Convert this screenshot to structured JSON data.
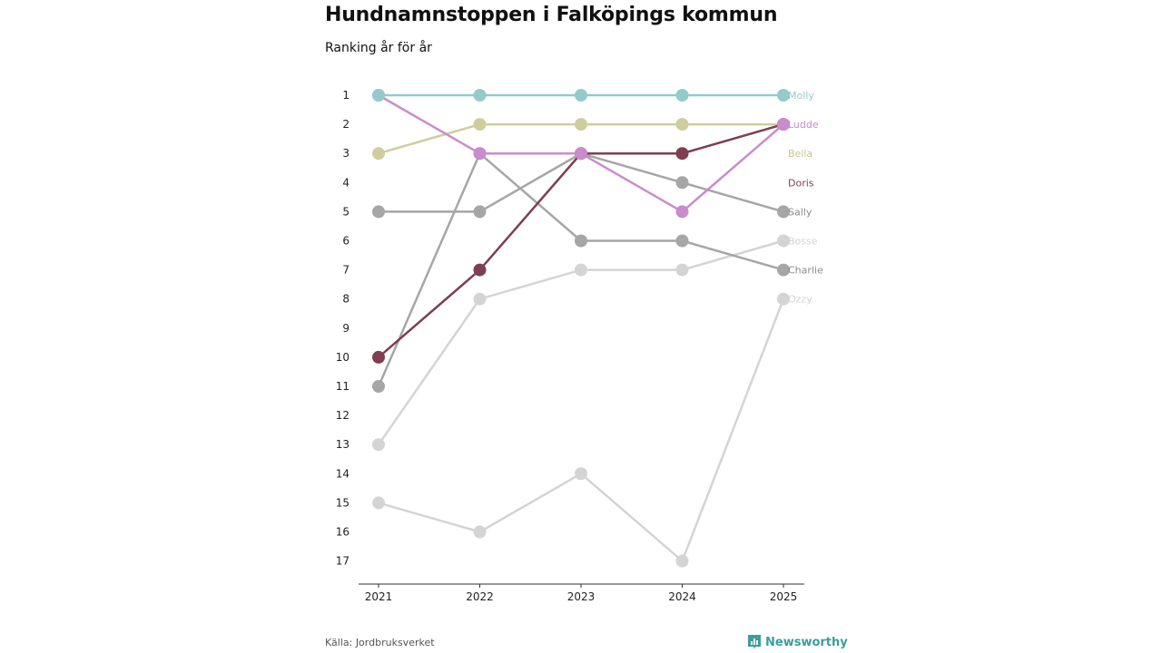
{
  "chart_data": {
    "type": "line",
    "title": "Hundnamnstoppen i Falköpings kommun",
    "subtitle": "Ranking år för år",
    "x": [
      "2021",
      "2022",
      "2023",
      "2024",
      "2025"
    ],
    "y_ticks": [
      "1",
      "2",
      "3",
      "4",
      "5",
      "6",
      "7",
      "8",
      "9",
      "10",
      "11",
      "12",
      "13",
      "14",
      "15",
      "16",
      "17"
    ],
    "ylim": [
      1,
      17
    ],
    "y_reversed": true,
    "grid": false,
    "series": [
      {
        "name": "Ozzy",
        "values": [
          15,
          16,
          14,
          17,
          8
        ],
        "color": "#d4d4d4",
        "label_color": "#d4d4d4"
      },
      {
        "name": "Bosse",
        "values": [
          13,
          8,
          7,
          7,
          6
        ],
        "color": "#d4d4d4",
        "label_color": "#d4d4d4"
      },
      {
        "name": "Charlie",
        "values": [
          11,
          3,
          6,
          6,
          7
        ],
        "color": "#a6a6a6",
        "label_color": "#8c8c8c"
      },
      {
        "name": "Sally",
        "values": [
          5,
          5,
          3,
          4,
          5
        ],
        "color": "#a6a6a6",
        "label_color": "#8c8c8c"
      },
      {
        "name": "Bella",
        "values": [
          3,
          2,
          2,
          2,
          2
        ],
        "color": "#cfcd9c",
        "label_color": "#c7c58f"
      },
      {
        "name": "Doris",
        "values": [
          10,
          7,
          3,
          3,
          2
        ],
        "color": "#7f3e52",
        "label_color": "#7f3e52"
      },
      {
        "name": "Ludde",
        "values": [
          1,
          3,
          3,
          5,
          2
        ],
        "color": "#c98ccc",
        "label_color": "#c98ccc"
      },
      {
        "name": "Molly",
        "values": [
          1,
          1,
          1,
          1,
          1
        ],
        "color": "#93cbcb",
        "label_color": "#93cbcb"
      }
    ]
  },
  "footer": {
    "source": "Källa: Jordbruksverket",
    "brand": "Newsworthy",
    "brand_icon": "bar-chart-icon",
    "brand_color": "#3a9e9c"
  }
}
